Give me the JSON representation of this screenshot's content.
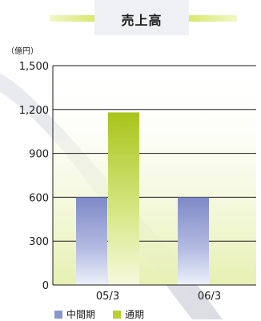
{
  "title": "売上高",
  "unit": "（億円）",
  "chart_data": {
    "type": "bar",
    "title": "売上高",
    "ylabel": "（億円）",
    "categories": [
      "05/3",
      "06/3"
    ],
    "ylim": [
      0,
      1500
    ],
    "yticks": [
      0,
      300,
      600,
      900,
      1200,
      1500
    ],
    "ytick_labels": [
      "0",
      "300",
      "600",
      "900",
      "1,200",
      "1,500"
    ],
    "series": [
      {
        "name": "中間期",
        "values": [
          600,
          600
        ],
        "color": "#8a96cf"
      },
      {
        "name": "通期",
        "values": [
          1180,
          null
        ],
        "color": "#b8cf2c"
      }
    ],
    "legend": "bottom",
    "grid": true
  }
}
